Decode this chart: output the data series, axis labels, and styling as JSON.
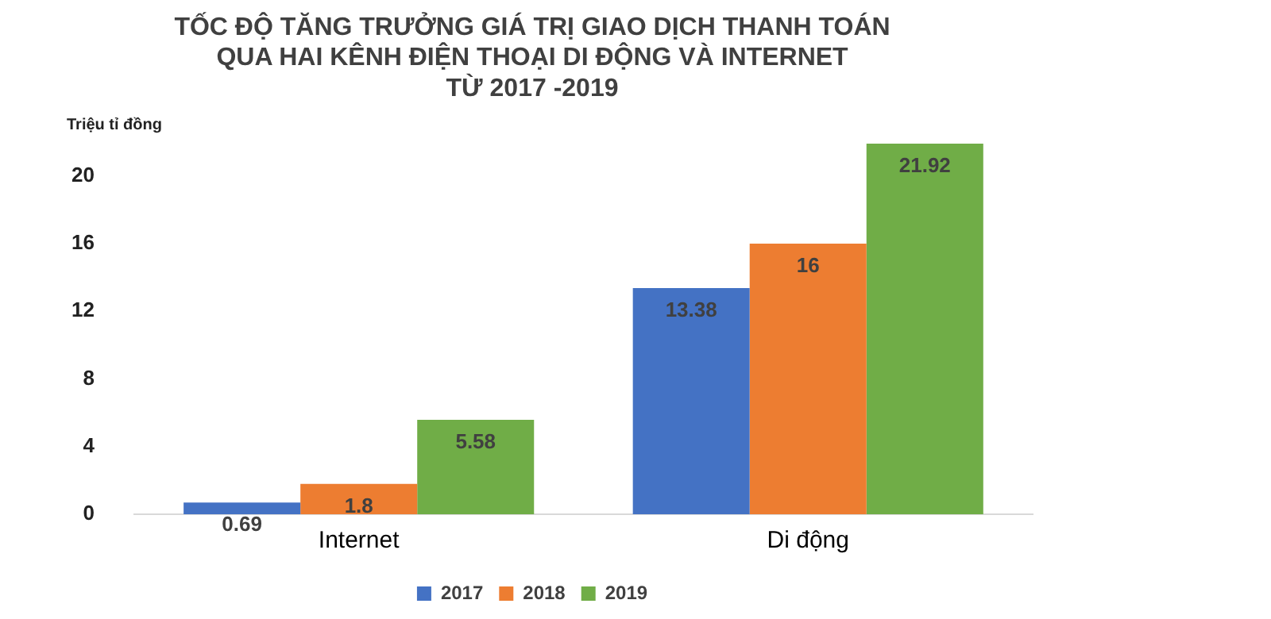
{
  "chart_data": {
    "type": "bar",
    "title": [
      "TỐC ĐỘ TĂNG TRƯỞNG GIÁ TRỊ GIAO DỊCH THANH TOÁN",
      "QUA HAI KÊNH ĐIỆN THOẠI DI ĐỘNG VÀ INTERNET",
      "TỪ 2017 -2019"
    ],
    "ylabel": "Triệu tỉ đồng",
    "categories": [
      "Internet",
      "Di động"
    ],
    "series": [
      {
        "name": "2017",
        "color": "#4472c4",
        "values": [
          0.69,
          13.38
        ]
      },
      {
        "name": "2018",
        "color": "#ed7d31",
        "values": [
          1.8,
          16
        ]
      },
      {
        "name": "2019",
        "color": "#70ad47",
        "values": [
          5.58,
          21.92
        ]
      }
    ],
    "ylim": [
      0,
      22
    ],
    "yticks": [
      0,
      4,
      8,
      12,
      16,
      20
    ],
    "grid": false,
    "legend": "bottom",
    "data_labels": true
  }
}
